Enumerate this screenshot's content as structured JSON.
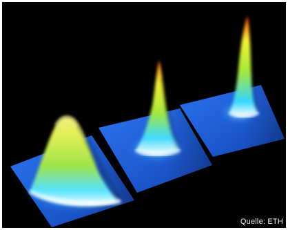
{
  "figure": {
    "credit": "Quelle: ETH",
    "background_color": "#000000",
    "plate_color": "#1f5fd8",
    "peak_colors": [
      "#ffffff",
      "#33d6ff",
      "#a6e83a",
      "#f2f233",
      "#ff7a1a"
    ],
    "peaks": [
      {
        "name": "broad-peak",
        "shape": "broad"
      },
      {
        "name": "medium-peak",
        "shape": "medium"
      },
      {
        "name": "sharp-peak",
        "shape": "sharp"
      }
    ]
  }
}
